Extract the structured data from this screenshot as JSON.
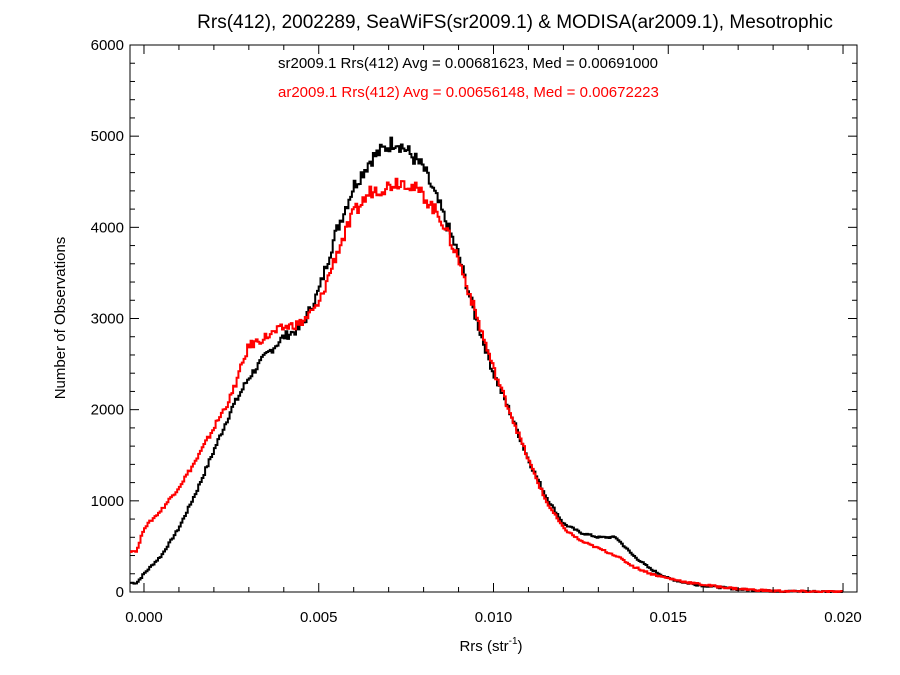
{
  "chart_data": {
    "type": "line",
    "style": "histogram-step",
    "title": "Rrs(412), 2002289, SeaWiFS(sr2009.1) & MODISA(ar2009.1), Mesotrophic",
    "xlabel": "Rrs (str",
    "xlabel_sup": "-1",
    "xlabel_close": ")",
    "ylabel": "Number of Observations",
    "xlim": [
      -0.0004,
      0.0204
    ],
    "ylim": [
      0,
      6000
    ],
    "x_ticks": [
      0.0,
      0.005,
      0.01,
      0.015,
      0.02
    ],
    "x_tick_labels": [
      "0.000",
      "0.005",
      "0.010",
      "0.015",
      "0.020"
    ],
    "y_ticks": [
      0,
      1000,
      2000,
      3000,
      4000,
      5000,
      6000
    ],
    "y_tick_labels": [
      "0",
      "1000",
      "2000",
      "3000",
      "4000",
      "5000",
      "6000"
    ],
    "annotations": [
      {
        "text": "sr2009.1 Rrs(412) Avg = 0.00681623, Med = 0.00691000",
        "color": "#000000"
      },
      {
        "text": "ar2009.1 Rrs(412) Avg = 0.00656148, Med = 0.00672223",
        "color": "#ff0000"
      }
    ],
    "series": [
      {
        "color": "#000000",
        "x": [
          -0.0002,
          0.0,
          0.0005,
          0.001,
          0.0015,
          0.002,
          0.0025,
          0.003,
          0.0035,
          0.004,
          0.0045,
          0.005,
          0.0055,
          0.006,
          0.0065,
          0.007,
          0.0072,
          0.0075,
          0.008,
          0.0085,
          0.009,
          0.0095,
          0.01,
          0.0105,
          0.011,
          0.0115,
          0.012,
          0.0125,
          0.013,
          0.0135,
          0.014,
          0.0145,
          0.015,
          0.0155,
          0.016,
          0.0165,
          0.017,
          0.0175,
          0.018,
          0.019,
          0.02
        ],
        "y": [
          100,
          200,
          400,
          700,
          1100,
          1550,
          2000,
          2350,
          2600,
          2800,
          2900,
          3300,
          3950,
          4450,
          4750,
          4900,
          4950,
          4850,
          4650,
          4200,
          3700,
          3000,
          2400,
          1950,
          1450,
          1050,
          750,
          650,
          600,
          600,
          400,
          250,
          150,
          100,
          70,
          50,
          30,
          20,
          10,
          5,
          2
        ]
      },
      {
        "color": "#ff0000",
        "x": [
          -0.0002,
          0.0,
          0.0005,
          0.001,
          0.0015,
          0.002,
          0.0025,
          0.003,
          0.0035,
          0.004,
          0.0045,
          0.005,
          0.0055,
          0.006,
          0.0065,
          0.007,
          0.0072,
          0.0075,
          0.008,
          0.0085,
          0.009,
          0.0095,
          0.01,
          0.0105,
          0.011,
          0.0115,
          0.012,
          0.0125,
          0.013,
          0.0135,
          0.014,
          0.0145,
          0.015,
          0.0155,
          0.016,
          0.0165,
          0.017,
          0.0175,
          0.018,
          0.019,
          0.02
        ],
        "y": [
          450,
          700,
          900,
          1150,
          1450,
          1800,
          2150,
          2700,
          2800,
          2900,
          2950,
          3150,
          3700,
          4150,
          4400,
          4450,
          4500,
          4500,
          4350,
          4100,
          3650,
          3050,
          2450,
          1950,
          1450,
          1000,
          700,
          560,
          480,
          400,
          280,
          200,
          150,
          110,
          80,
          55,
          35,
          22,
          12,
          5,
          2
        ]
      }
    ]
  }
}
